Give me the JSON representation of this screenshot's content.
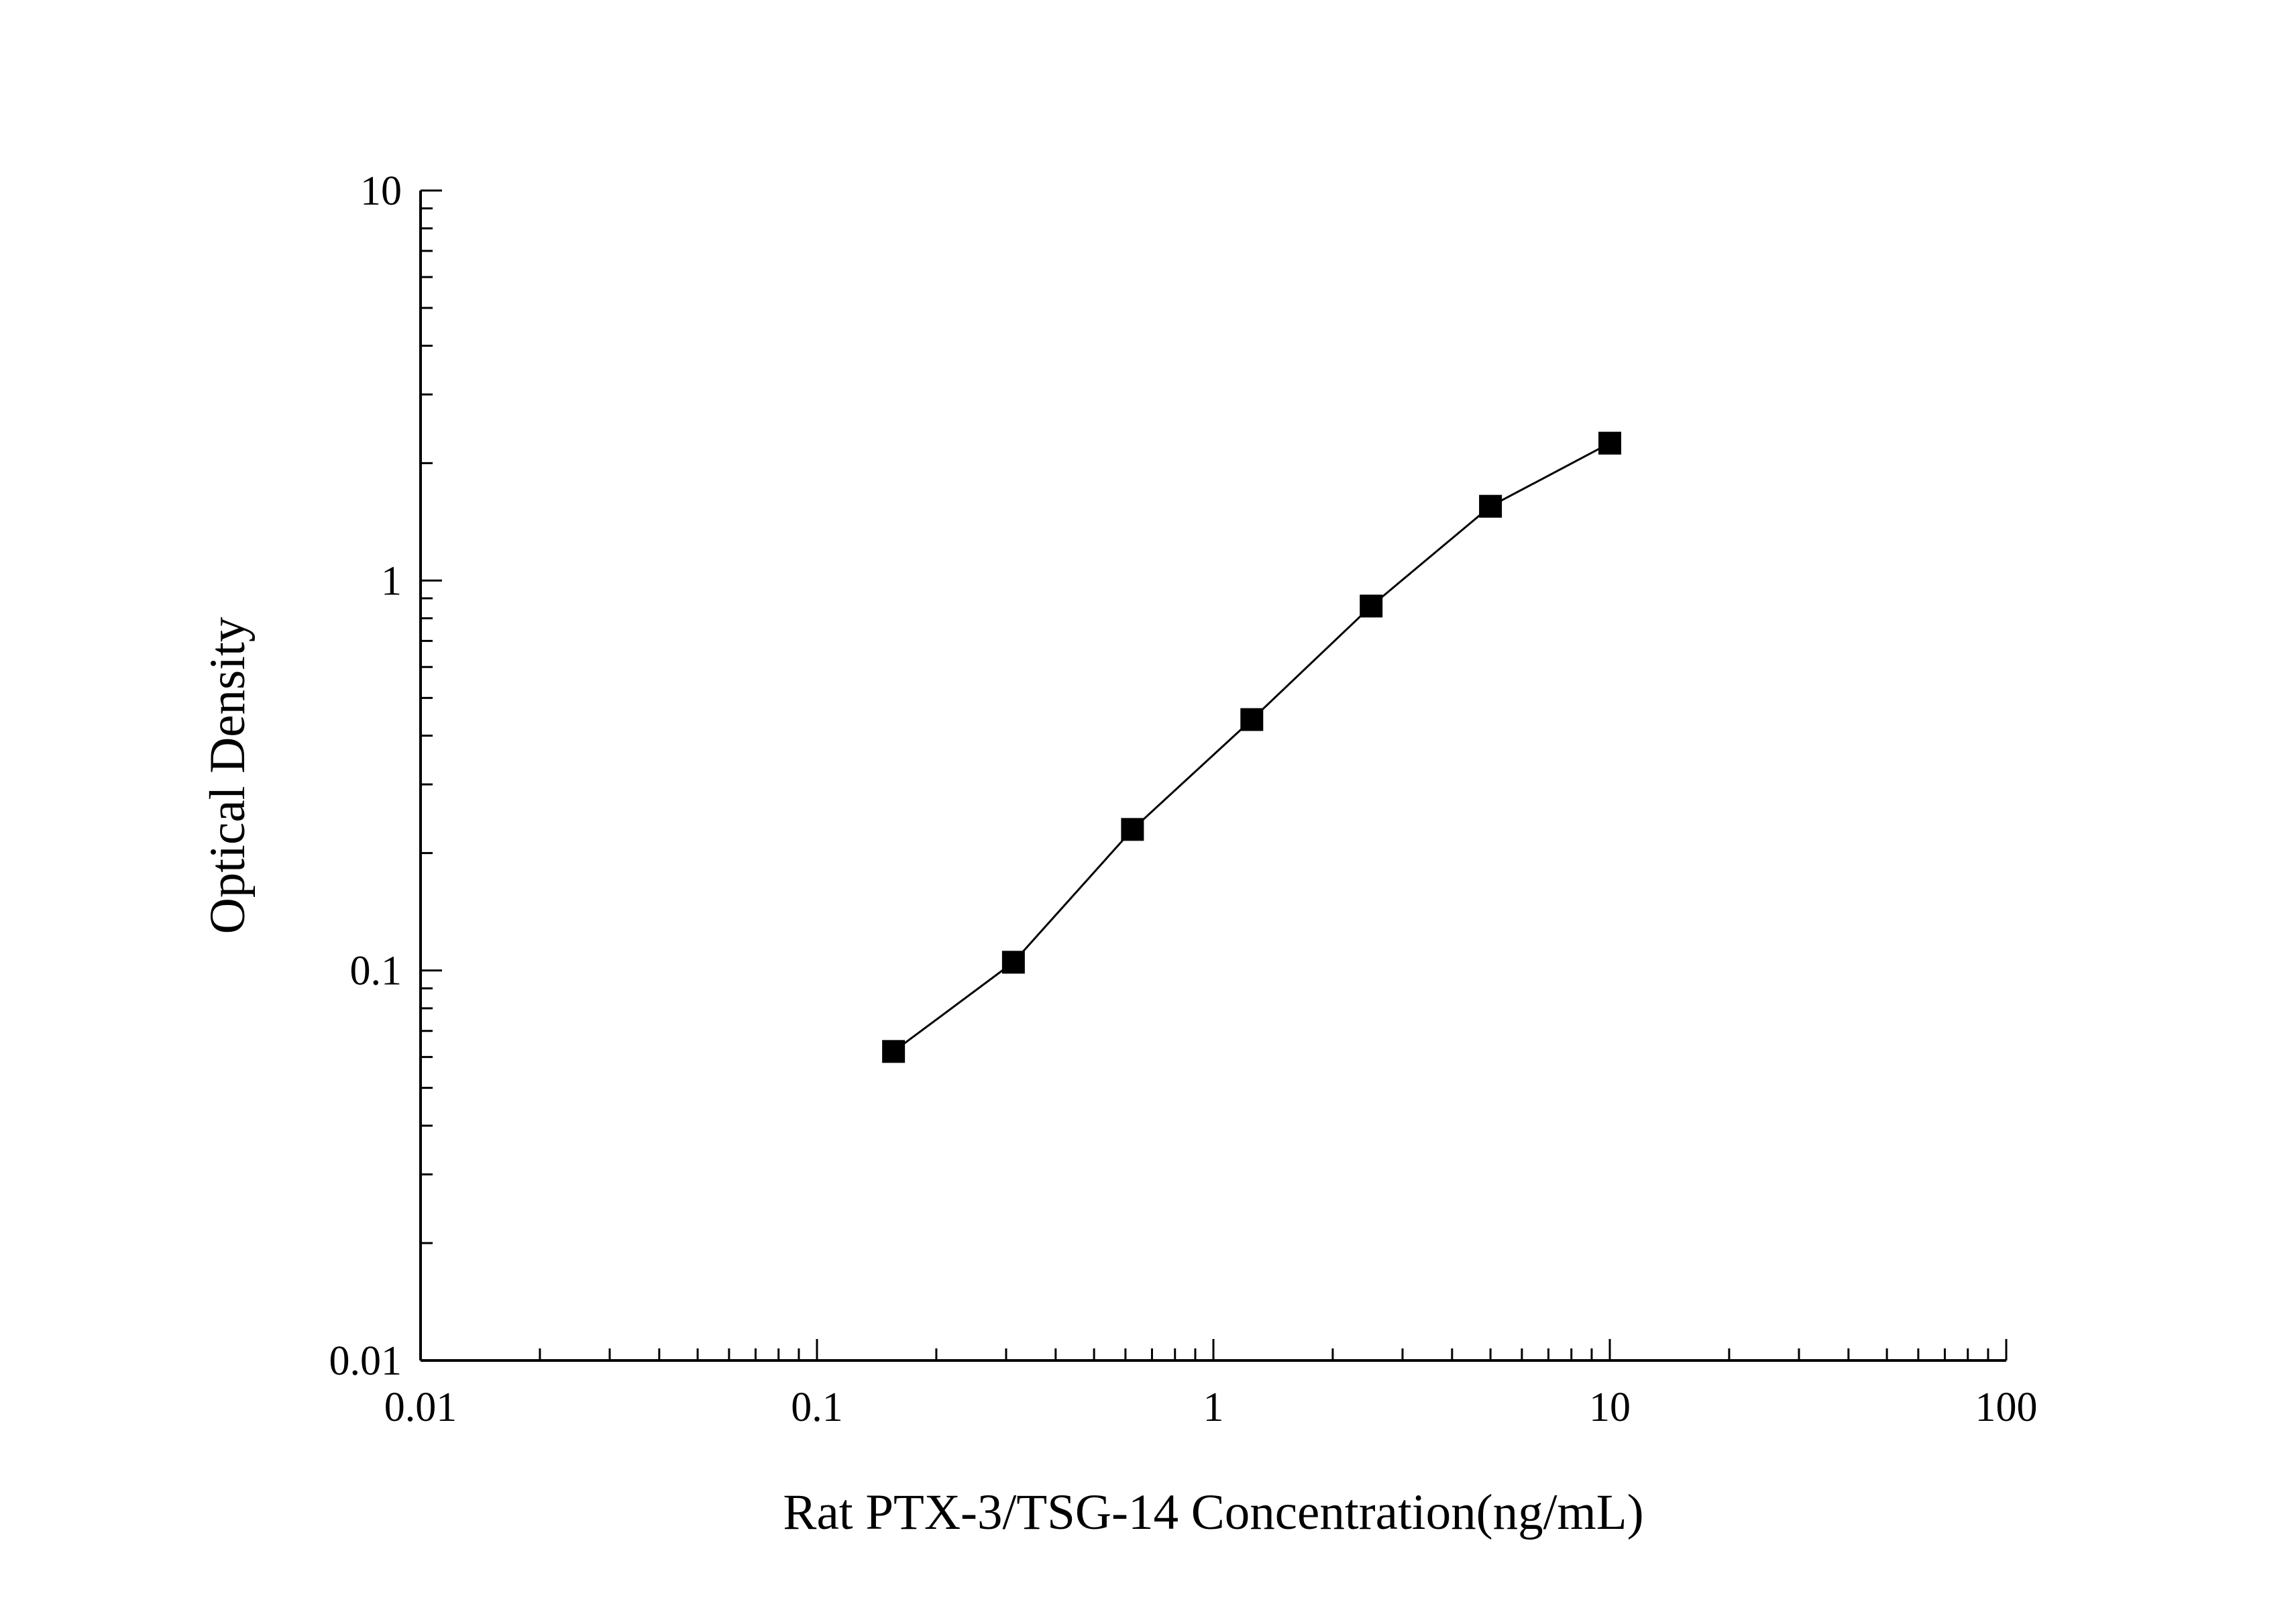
{
  "chart_data": {
    "type": "line",
    "title": "",
    "xlabel": "Rat PTX-3/TSG-14 Concentration(ng/mL)",
    "ylabel": "Optical Density",
    "x_scale": "log",
    "y_scale": "log",
    "xlim": [
      0.01,
      100
    ],
    "ylim": [
      0.01,
      10
    ],
    "x_ticks": [
      "0.01",
      "0.1",
      "1",
      "10",
      "100"
    ],
    "y_ticks": [
      "0.01",
      "0.1",
      "1",
      "10"
    ],
    "x": [
      0.156,
      0.313,
      0.625,
      1.25,
      2.5,
      5,
      10
    ],
    "y": [
      0.062,
      0.105,
      0.23,
      0.44,
      0.86,
      1.55,
      2.25
    ],
    "marker": "filled-square",
    "line_color": "#000000",
    "marker_color": "#000000",
    "axis_color": "#000000",
    "background": "#ffffff",
    "grid": false,
    "legend": "none"
  }
}
